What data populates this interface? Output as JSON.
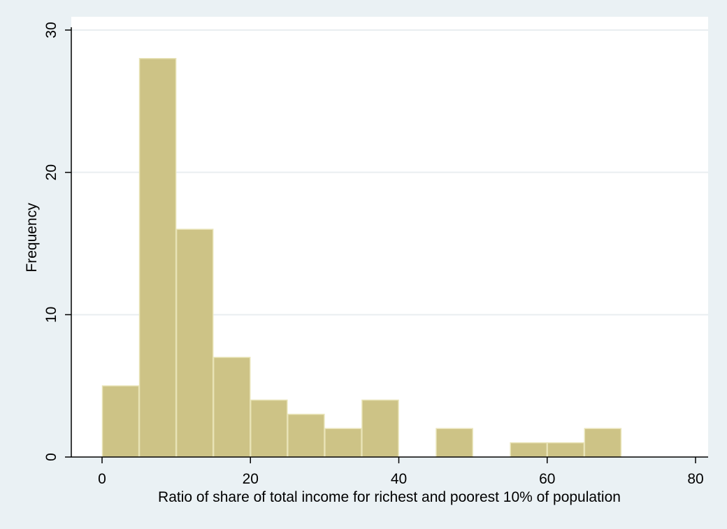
{
  "chart_data": {
    "type": "bar",
    "subtype": "histogram",
    "xlabel": "Ratio of share of total income for richest and poorest 10% of population",
    "ylabel": "Frequency",
    "xlim": [
      0,
      80
    ],
    "ylim": [
      0,
      30
    ],
    "xticks": [
      "0",
      "20",
      "40",
      "60",
      "80"
    ],
    "yticks": [
      "0",
      "10",
      "20",
      "30"
    ],
    "grid": "horizontal",
    "legend": "none",
    "bar_color": "#cdc386",
    "bar_edge_color": "#e8e3b6",
    "plot_background": "#ffffff",
    "outer_background": "#eaf1f4",
    "bins": [
      {
        "x0": 0,
        "x1": 5,
        "value": 5
      },
      {
        "x0": 5,
        "x1": 10,
        "value": 28
      },
      {
        "x0": 10,
        "x1": 15,
        "value": 16
      },
      {
        "x0": 15,
        "x1": 20,
        "value": 7
      },
      {
        "x0": 20,
        "x1": 25,
        "value": 4
      },
      {
        "x0": 25,
        "x1": 30,
        "value": 3
      },
      {
        "x0": 30,
        "x1": 35,
        "value": 2
      },
      {
        "x0": 35,
        "x1": 40,
        "value": 4
      },
      {
        "x0": 40,
        "x1": 45,
        "value": 0
      },
      {
        "x0": 45,
        "x1": 50,
        "value": 2
      },
      {
        "x0": 50,
        "x1": 55,
        "value": 0
      },
      {
        "x0": 55,
        "x1": 60,
        "value": 1
      },
      {
        "x0": 60,
        "x1": 65,
        "value": 1
      },
      {
        "x0": 65,
        "x1": 70,
        "value": 2
      }
    ]
  }
}
